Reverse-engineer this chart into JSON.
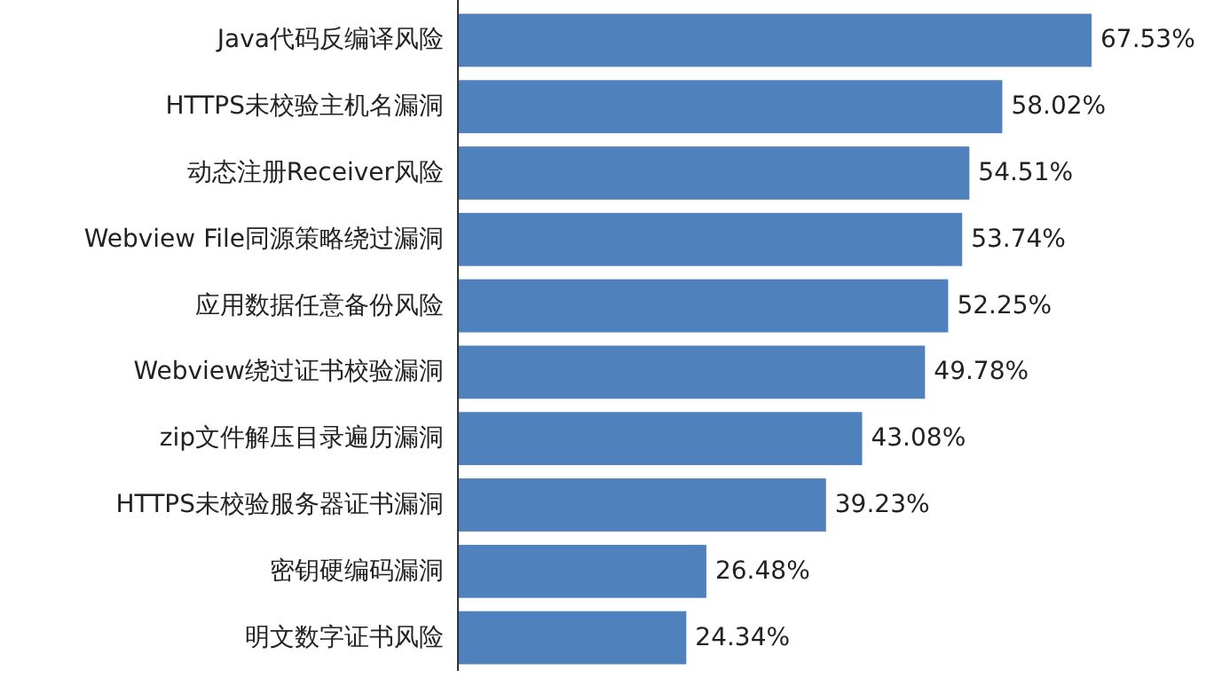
{
  "chart_data": {
    "type": "bar",
    "orientation": "horizontal",
    "categories": [
      "Java代码反编译风险",
      "HTTPS未校验主机名漏洞",
      "动态注册Receiver风险",
      "Webview File同源策略绕过漏洞",
      "应用数据任意备份风险",
      "Webview绕过证书校验漏洞",
      "zip文件解压目录遍历漏洞",
      "HTTPS未校验服务器证书漏洞",
      "密钥硬编码漏洞",
      "明文数字证书风险"
    ],
    "values": [
      67.53,
      58.02,
      54.51,
      53.74,
      52.25,
      49.78,
      43.08,
      39.23,
      26.48,
      24.34
    ],
    "value_labels": [
      "67.53%",
      "58.02%",
      "54.51%",
      "53.74%",
      "52.25%",
      "49.78%",
      "43.08%",
      "39.23%",
      "26.48%",
      "24.34%"
    ],
    "color": "#4f81bd"
  }
}
